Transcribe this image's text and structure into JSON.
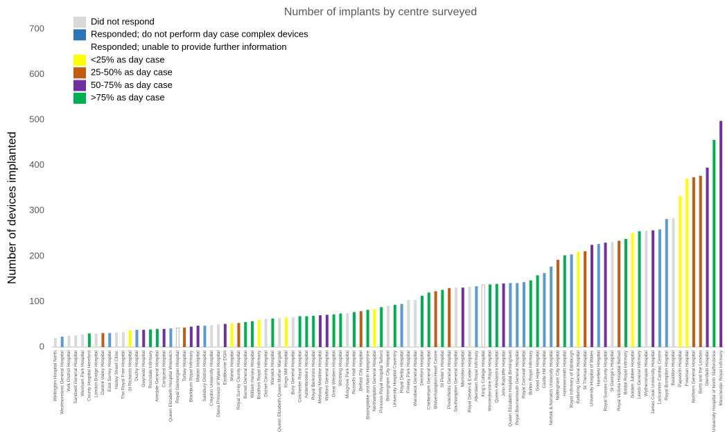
{
  "chart_data": {
    "type": "bar",
    "title": "Number of implants by centre surveyed",
    "y_label": "Number of devices implanted",
    "ylim": [
      0,
      700
    ],
    "yticks": [
      0,
      100,
      200,
      300,
      400,
      500,
      600,
      700
    ],
    "grid": false,
    "legend": [
      {
        "name": "Did not respond",
        "color": "#d9d9d9"
      },
      {
        "name": "Responded; do not perform day case complex devices",
        "color": "#2e75b6"
      },
      {
        "name": "Responded; unable to provide further information",
        "color": "#ffffff"
      },
      {
        "name": "<25% as day case",
        "color": "#ffff00"
      },
      {
        "name": "25-50% as day case",
        "color": "#c55a11"
      },
      {
        "name": "50-75% as day case",
        "color": "#7030a0"
      },
      {
        "name": ">75% as day case",
        "color": "#00b050"
      }
    ],
    "categories": [
      "Wellington Hospital North",
      "Westmoreland General Hospital",
      "York District Hospital",
      "Sandwell General Hospital",
      "Wexham Park Hospital",
      "County Hospital Hereford",
      "London Bridge Hospital",
      "Darent Valley Hospital",
      "East Surrey Hospital",
      "Harley Street Clinic",
      "The Royal Free Hospital",
      "St Richards Hospital",
      "Duchy Hospital",
      "Gwynedd Hospital",
      "Rochdale Infirmary",
      "Airedale General Hospital",
      "Conquest Hospital",
      "Queen Elizabeth Hospital Woolwich",
      "Royal Glamorgan Hospital",
      "Torbay Hospital",
      "Blackburn Royal Infirmary",
      "Maidor Hospital",
      "Salisbury District Hospital",
      "Croydon University Hospital",
      "Diana Princess of Wales Hospital",
      "Eastbourne DGH",
      "Manor Hospital",
      "Royal Surrey County Hospital",
      "Barnet General Hospital",
      "William Harvey Hospital",
      "Bradford Royal Infirmary",
      "Dorset County Hospital",
      "Warwick Hospital",
      "Queen Elizabeth Queen Mother Margate",
      "Kings Mill Hospital",
      "Bury General Hospital",
      "Colchester Royal Hospital",
      "Addenbrooke's Hospital",
      "Royal Berkshire Hospital",
      "Medway Maritime Hospital",
      "Watford General Hospital",
      "Great Western Hospital",
      "Worthing Hospital",
      "Musgrove Park Hospital",
      "Russells Hall Hospital",
      "Belfast City Hospital",
      "Basingstoke and North Hampshire",
      "Northampton General Hospital",
      "Princess Royal Hospital Telford",
      "Birmingham City Hospital",
      "University Hospital Coventry",
      "Royal Derby Hospital",
      "Frimley Park Hospital",
      "Wansbeck General Hospital",
      "Derriford Hospital",
      "Cheltenham General Hospital",
      "Wolverhampton Heart Centre",
      "St Peter's Hospital",
      "Pinderfields General Hospital",
      "Southampton General Hospital",
      "Morriston Hospital",
      "Royal Devon & Exeter Hospital",
      "Aberdeen Royal Infirmary",
      "King's College Hospital",
      "Worcestershire Royal Hospital",
      "Queen Alexandra Hospital",
      "John Radcliffe Hospital",
      "Queen Elizabeth Hospital Birmingham",
      "Royal Bournemouth General Hospital",
      "Royal Cornwall Hospital",
      "Bolton Royal Infirmary",
      "Good Hope Hospital",
      "Castle Hill Hospital",
      "Norfolk & Norwich University Hospital",
      "Nottingham City Hospital",
      "Hammersmith Hospital",
      "Royal Infirmary of Edinburgh",
      "Kettering General Hospital",
      "St Thomas Hospital",
      "University Hospital of Wales",
      "Harefield Hospital",
      "Royal Sussex County Hospital",
      "St George's Hospital",
      "Royal Victoria Hospital Belfast",
      "Bristol Royal Infirmary",
      "Golden Jubilee Hospital",
      "Leeds General Infirmary",
      "Wythenshawe Hospital",
      "James Cook University Hospital",
      "Lancashire Cardiac Centre",
      "Royal Brompton Hospital",
      "Basildon Hospital",
      "Papworth Hospital",
      "Freeman Hospital",
      "Northern General Hospital",
      "Barts and the London",
      "Glenfield Hospital",
      "University Hospital of North Staffordshire",
      "Manchester Royal Infirmary"
    ],
    "values": [
      20,
      23,
      25,
      26,
      28,
      30,
      30,
      31,
      31,
      32,
      33,
      37,
      38,
      38,
      39,
      40,
      40,
      41,
      42,
      43,
      45,
      47,
      47,
      48,
      50,
      51,
      52,
      53,
      55,
      57,
      59,
      62,
      63,
      64,
      65,
      66,
      68,
      68,
      69,
      70,
      71,
      72,
      74,
      75,
      77,
      79,
      82,
      84,
      88,
      91,
      93,
      95,
      104,
      104,
      113,
      120,
      123,
      126,
      130,
      131,
      131,
      133,
      134,
      137,
      138,
      139,
      140,
      141,
      141,
      143,
      147,
      158,
      163,
      177,
      192,
      202,
      204,
      210,
      211,
      225,
      227,
      230,
      232,
      234,
      238,
      252,
      255,
      256,
      257,
      259,
      282,
      284,
      333,
      371,
      374,
      377,
      395,
      456,
      498
    ],
    "colors": [
      "#d9d9d9",
      "#5b9bd5",
      "#d9d9d9",
      "#d9d9d9",
      "#d9d9d9",
      "#00b050",
      "#d9d9d9",
      "#c55a11",
      "#5b9bd5",
      "#d9d9d9",
      "#d9d9d9",
      "#ffff00",
      "#5b9bd5",
      "#7030a0",
      "#00b050",
      "#00b050",
      "#7030a0",
      "#5b9bd5",
      "#ffffff",
      "#c55a11",
      "#7030a0",
      "#7030a0",
      "#5b9bd5",
      "#d9d9d9",
      "#d9d9d9",
      "#7030a0",
      "#ffff00",
      "#c55a11",
      "#00b050",
      "#00b050",
      "#ffff00",
      "#d9d9d9",
      "#00b050",
      "#d9d9d9",
      "#ffff00",
      "#d9d9d9",
      "#00b050",
      "#00b050",
      "#00b050",
      "#7030a0",
      "#7030a0",
      "#00b050",
      "#00b050",
      "#d9d9d9",
      "#00b050",
      "#c55a11",
      "#00b050",
      "#ffff00",
      "#00b050",
      "#d9d9d9",
      "#00b050",
      "#5b9bd5",
      "#d9d9d9",
      "#d9d9d9",
      "#00b050",
      "#00b050",
      "#c55a11",
      "#00b050",
      "#c55a11",
      "#d9d9d9",
      "#7030a0",
      "#d9d9d9",
      "#5b9bd5",
      "#ffffff",
      "#00b050",
      "#00b050",
      "#7030a0",
      "#5b9bd5",
      "#5b9bd5",
      "#5b9bd5",
      "#00b050",
      "#00b050",
      "#5b9bd5",
      "#5b9bd5",
      "#c55a11",
      "#00b050",
      "#5b9bd5",
      "#ffff00",
      "#c55a11",
      "#7030a0",
      "#5b9bd5",
      "#7030a0",
      "#d9d9d9",
      "#c55a11",
      "#00b050",
      "#ffff00",
      "#00b050",
      "#d9d9d9",
      "#7030a0",
      "#5b9bd5",
      "#5b9bd5",
      "#d9d9d9",
      "#ffff00",
      "#ffff00",
      "#c55a11",
      "#c55a11",
      "#7030a0",
      "#00b050",
      "#7030a0"
    ]
  }
}
